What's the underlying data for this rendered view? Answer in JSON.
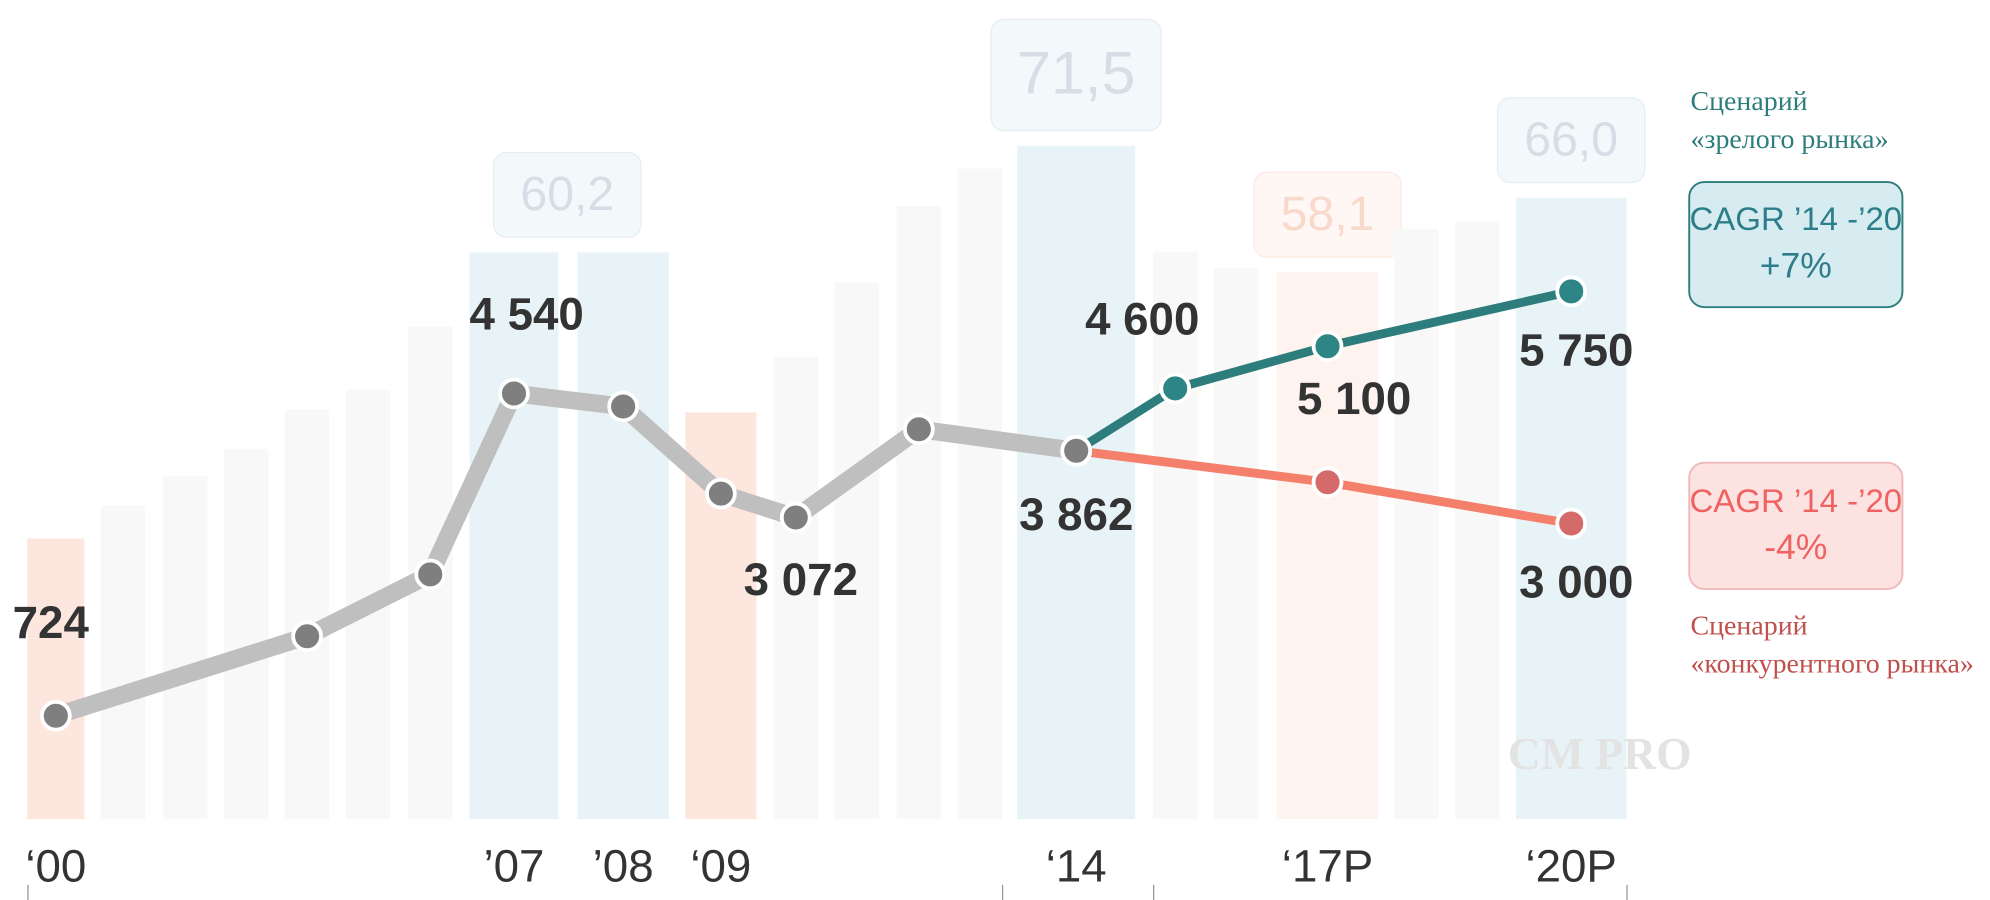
{
  "chart_data": {
    "type": "combo",
    "categories": [
      "‘00",
      null,
      null,
      null,
      null,
      null,
      null,
      "’07",
      "’08",
      "‘09",
      null,
      null,
      null,
      null,
      "‘14",
      null,
      null,
      "‘17P",
      null,
      null,
      "‘20P"
    ],
    "bars": {
      "values": [
        29.8,
        33.3,
        36.5,
        39.3,
        43.5,
        45.6,
        52.3,
        60.2,
        60.2,
        43.2,
        49.1,
        57.0,
        65.1,
        69.1,
        71.5,
        60.3,
        58.5,
        58.1,
        62.7,
        63.5,
        66.0
      ],
      "value_labels": [
        null,
        null,
        null,
        null,
        null,
        null,
        null,
        "60,2",
        null,
        null,
        null,
        null,
        null,
        null,
        "71,5",
        null,
        null,
        "58,1",
        null,
        null,
        "66,0"
      ],
      "colors": [
        "#fde6dd",
        "#f8f8f8",
        "#f8f8f8",
        "#f8f8f8",
        "#f8f8f8",
        "#f8f8f8",
        "#f8f8f8",
        "#e8f3f8",
        "#e8f3f8",
        "#fde6dd",
        "#f8f8f8",
        "#f8f8f8",
        "#f8f8f8",
        "#f8f8f8",
        "#e8f3f8",
        "#f8f8f8",
        "#f8f8f8",
        "#fef3ee",
        "#f8f8f8",
        "#f8f8f8",
        "#e8f3f8"
      ]
    },
    "ylim": [
      0,
      87
    ],
    "y2lim": [
      -500,
      9200
    ],
    "series": [
      {
        "color": "#bfbfbf",
        "marker_color": "#7f7f7f",
        "axis": "y2",
        "values": [
          724,
          null,
          null,
          null,
          1666,
          null,
          2398,
          4540,
          4386,
          3355,
          3072,
          null,
          4117,
          null,
          3862,
          null,
          null,
          null,
          null,
          null,
          null
        ],
        "value_labels": [
          "724",
          null,
          null,
          null,
          null,
          null,
          null,
          "4 540",
          null,
          null,
          "3 072",
          null,
          null,
          null,
          "3 862",
          null,
          null,
          null,
          null,
          null,
          null
        ]
      },
      {
        "color": "#2e7d7d",
        "marker_color": "#2e8585",
        "axis": "y2",
        "values": [
          null,
          null,
          null,
          null,
          null,
          null,
          null,
          null,
          null,
          null,
          null,
          null,
          null,
          null,
          3862,
          4600,
          null,
          5100,
          null,
          null,
          5750
        ],
        "value_labels": [
          null,
          null,
          null,
          null,
          null,
          null,
          null,
          null,
          null,
          null,
          null,
          null,
          null,
          null,
          null,
          "4 600",
          null,
          "5 100",
          null,
          null,
          "5 750"
        ]
      },
      {
        "color": "#f47f6a",
        "marker_color": "#d46a6a",
        "axis": "y2",
        "values": [
          null,
          null,
          null,
          null,
          null,
          null,
          null,
          null,
          null,
          null,
          null,
          null,
          null,
          null,
          3862,
          null,
          null,
          3489,
          null,
          null,
          3000
        ],
        "value_labels": [
          null,
          null,
          null,
          null,
          null,
          null,
          null,
          null,
          null,
          null,
          null,
          null,
          null,
          null,
          null,
          null,
          null,
          null,
          null,
          null,
          "3 000"
        ]
      }
    ],
    "annotations": {
      "mature_title": [
        "Сценарий",
        "«зрелого рынка»"
      ],
      "mature_cagr": [
        "CAGR ’14 -’20",
        "+7%"
      ],
      "competitive_cagr": [
        "CAGR ’14 -’20",
        "-4%"
      ],
      "competitive_title": [
        "Сценарий",
        "«конкурентного рынка»"
      ],
      "watermark": "CM PRO"
    }
  }
}
